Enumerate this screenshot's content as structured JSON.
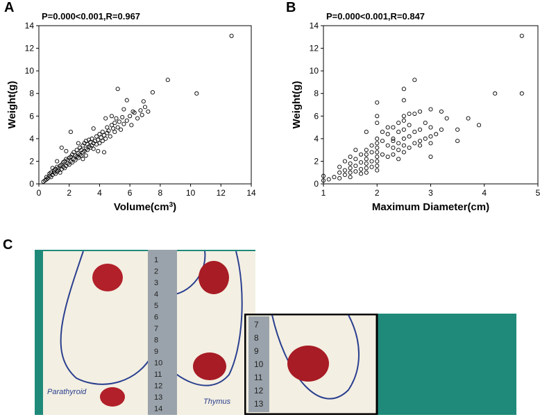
{
  "panels": {
    "a": "A",
    "b": "B",
    "c": "C"
  },
  "chart_data": [
    {
      "type": "scatter",
      "panel": "A",
      "annotation": "P=0.000<0.001,R=0.967",
      "xlabel_main": "Volume(cm",
      "xlabel_sup": "3",
      "xlabel_end": ")",
      "ylabel": "Weight(g)",
      "xlim": [
        0,
        14
      ],
      "ylim": [
        0,
        14
      ],
      "xticks": [
        0,
        2,
        4,
        6,
        8,
        10,
        12,
        14
      ],
      "yticks": [
        0,
        2,
        4,
        6,
        8,
        10,
        12,
        14
      ],
      "points": [
        [
          0.3,
          0.2
        ],
        [
          0.4,
          0.3
        ],
        [
          0.5,
          0.4
        ],
        [
          0.5,
          0.6
        ],
        [
          0.6,
          0.5
        ],
        [
          0.7,
          0.7
        ],
        [
          0.7,
          0.9
        ],
        [
          0.8,
          0.6
        ],
        [
          0.8,
          1.0
        ],
        [
          0.9,
          0.8
        ],
        [
          1.0,
          1.0
        ],
        [
          1.0,
          1.2
        ],
        [
          1.1,
          0.9
        ],
        [
          1.1,
          1.3
        ],
        [
          1.2,
          1.1
        ],
        [
          1.2,
          1.5
        ],
        [
          1.3,
          1.2
        ],
        [
          1.3,
          1.4
        ],
        [
          1.4,
          1.6
        ],
        [
          1.4,
          1.0
        ],
        [
          1.5,
          1.3
        ],
        [
          1.5,
          1.7
        ],
        [
          1.6,
          1.5
        ],
        [
          1.6,
          1.9
        ],
        [
          1.7,
          1.4
        ],
        [
          1.7,
          2.0
        ],
        [
          1.8,
          1.6
        ],
        [
          1.8,
          2.2
        ],
        [
          1.9,
          1.8
        ],
        [
          1.9,
          2.1
        ],
        [
          2.0,
          1.7
        ],
        [
          2.0,
          2.3
        ],
        [
          2.1,
          2.0
        ],
        [
          2.1,
          2.4
        ],
        [
          2.2,
          1.9
        ],
        [
          2.2,
          2.6
        ],
        [
          2.3,
          2.2
        ],
        [
          2.3,
          2.8
        ],
        [
          2.4,
          2.1
        ],
        [
          2.4,
          2.5
        ],
        [
          2.5,
          2.4
        ],
        [
          2.5,
          3.0
        ],
        [
          2.6,
          2.3
        ],
        [
          2.6,
          2.7
        ],
        [
          2.7,
          2.6
        ],
        [
          2.7,
          3.2
        ],
        [
          2.8,
          2.5
        ],
        [
          2.8,
          3.0
        ],
        [
          2.9,
          2.8
        ],
        [
          2.9,
          3.4
        ],
        [
          3.0,
          2.9
        ],
        [
          3.0,
          3.6
        ],
        [
          3.1,
          3.1
        ],
        [
          3.1,
          3.8
        ],
        [
          3.2,
          3.0
        ],
        [
          3.2,
          3.5
        ],
        [
          3.3,
          3.3
        ],
        [
          3.3,
          3.9
        ],
        [
          3.4,
          3.2
        ],
        [
          3.4,
          3.7
        ],
        [
          3.5,
          3.4
        ],
        [
          3.5,
          4.0
        ],
        [
          3.6,
          3.6
        ],
        [
          3.6,
          3.1
        ],
        [
          3.7,
          3.8
        ],
        [
          3.8,
          3.5
        ],
        [
          3.8,
          4.2
        ],
        [
          3.9,
          3.9
        ],
        [
          4.0,
          3.6
        ],
        [
          4.0,
          4.4
        ],
        [
          4.1,
          4.1
        ],
        [
          4.2,
          3.8
        ],
        [
          4.2,
          4.6
        ],
        [
          4.3,
          4.3
        ],
        [
          4.4,
          4.0
        ],
        [
          4.5,
          4.5
        ],
        [
          4.5,
          5.0
        ],
        [
          4.6,
          4.7
        ],
        [
          4.7,
          4.2
        ],
        [
          4.8,
          5.2
        ],
        [
          4.9,
          4.9
        ],
        [
          5.0,
          5.4
        ],
        [
          5.0,
          4.6
        ],
        [
          5.1,
          5.8
        ],
        [
          5.2,
          5.0
        ],
        [
          5.3,
          5.5
        ],
        [
          5.4,
          4.8
        ],
        [
          5.5,
          5.9
        ],
        [
          5.6,
          5.3
        ],
        [
          5.8,
          5.6
        ],
        [
          6.0,
          6.0
        ],
        [
          6.1,
          5.2
        ],
        [
          6.3,
          6.3
        ],
        [
          6.5,
          5.8
        ],
        [
          6.7,
          6.5
        ],
        [
          6.8,
          6.1
        ],
        [
          7.0,
          6.8
        ],
        [
          7.2,
          6.4
        ],
        [
          2.1,
          4.6
        ],
        [
          1.5,
          3.2
        ],
        [
          1.8,
          2.9
        ],
        [
          4.3,
          2.8
        ],
        [
          5.2,
          8.4
        ],
        [
          6.9,
          7.3
        ],
        [
          7.5,
          8.1
        ],
        [
          8.5,
          9.2
        ],
        [
          10.4,
          8.0
        ],
        [
          12.7,
          13.1
        ],
        [
          5.8,
          7.4
        ],
        [
          3.6,
          4.9
        ],
        [
          4.8,
          6.0
        ],
        [
          2.9,
          2.2
        ],
        [
          3.9,
          2.9
        ],
        [
          1.2,
          2.0
        ],
        [
          0.9,
          1.4
        ],
        [
          6.2,
          6.4
        ],
        [
          5.6,
          6.6
        ],
        [
          4.4,
          5.8
        ],
        [
          3.1,
          2.5
        ],
        [
          2.6,
          3.6
        ]
      ]
    },
    {
      "type": "scatter",
      "panel": "B",
      "annotation": "P=0.000<0.001,R=0.847",
      "xlabel": "Maximum Diameter(cm)",
      "ylabel": "Weight(g)",
      "xlim": [
        1,
        5
      ],
      "ylim": [
        0,
        14
      ],
      "xticks": [
        1,
        2,
        3,
        4,
        5
      ],
      "yticks": [
        0,
        2,
        4,
        6,
        8,
        10,
        12,
        14
      ],
      "points": [
        [
          1.0,
          0.3
        ],
        [
          1.0,
          0.7
        ],
        [
          1.1,
          0.4
        ],
        [
          1.2,
          0.6
        ],
        [
          1.3,
          0.5
        ],
        [
          1.3,
          1.0
        ],
        [
          1.3,
          1.5
        ],
        [
          1.4,
          0.8
        ],
        [
          1.4,
          1.2
        ],
        [
          1.4,
          2.0
        ],
        [
          1.5,
          0.6
        ],
        [
          1.5,
          1.0
        ],
        [
          1.5,
          1.4
        ],
        [
          1.5,
          1.8
        ],
        [
          1.5,
          2.4
        ],
        [
          1.6,
          1.1
        ],
        [
          1.6,
          1.6
        ],
        [
          1.6,
          2.2
        ],
        [
          1.7,
          0.9
        ],
        [
          1.7,
          1.3
        ],
        [
          1.7,
          1.9
        ],
        [
          1.7,
          2.6
        ],
        [
          1.8,
          1.0
        ],
        [
          1.8,
          1.4
        ],
        [
          1.8,
          1.8
        ],
        [
          1.8,
          2.2
        ],
        [
          1.8,
          2.6
        ],
        [
          1.8,
          3.0
        ],
        [
          1.8,
          4.6
        ],
        [
          1.9,
          1.5
        ],
        [
          1.9,
          2.0
        ],
        [
          1.9,
          2.8
        ],
        [
          1.9,
          3.4
        ],
        [
          2.0,
          1.2
        ],
        [
          2.0,
          1.6
        ],
        [
          2.0,
          2.0
        ],
        [
          2.0,
          2.4
        ],
        [
          2.0,
          2.8
        ],
        [
          2.0,
          3.2
        ],
        [
          2.0,
          3.6
        ],
        [
          2.0,
          4.0
        ],
        [
          2.0,
          5.4
        ],
        [
          2.0,
          6.0
        ],
        [
          2.0,
          7.2
        ],
        [
          2.1,
          2.6
        ],
        [
          2.1,
          3.8
        ],
        [
          2.2,
          2.4
        ],
        [
          2.2,
          3.4
        ],
        [
          2.2,
          4.4
        ],
        [
          2.3,
          2.6
        ],
        [
          2.3,
          3.2
        ],
        [
          2.3,
          4.0
        ],
        [
          2.3,
          5.0
        ],
        [
          2.4,
          2.2
        ],
        [
          2.4,
          3.0
        ],
        [
          2.4,
          3.6
        ],
        [
          2.4,
          4.6
        ],
        [
          2.5,
          2.8
        ],
        [
          2.5,
          3.4
        ],
        [
          2.5,
          4.0
        ],
        [
          2.5,
          4.8
        ],
        [
          2.5,
          5.6
        ],
        [
          2.5,
          6.0
        ],
        [
          2.5,
          8.4
        ],
        [
          2.5,
          7.4
        ],
        [
          2.6,
          3.2
        ],
        [
          2.6,
          4.2
        ],
        [
          2.6,
          5.2
        ],
        [
          2.7,
          3.6
        ],
        [
          2.7,
          4.6
        ],
        [
          2.7,
          6.2
        ],
        [
          2.7,
          9.2
        ],
        [
          2.8,
          3.4
        ],
        [
          2.8,
          4.8
        ],
        [
          2.8,
          6.4
        ],
        [
          2.9,
          4.0
        ],
        [
          2.9,
          5.4
        ],
        [
          3.0,
          3.6
        ],
        [
          3.0,
          4.2
        ],
        [
          3.0,
          5.0
        ],
        [
          3.0,
          6.6
        ],
        [
          3.0,
          2.4
        ],
        [
          3.1,
          4.4
        ],
        [
          3.2,
          4.8
        ],
        [
          3.2,
          6.4
        ],
        [
          3.3,
          5.8
        ],
        [
          3.5,
          3.8
        ],
        [
          3.5,
          4.8
        ],
        [
          3.7,
          5.8
        ],
        [
          3.9,
          5.2
        ],
        [
          4.2,
          8.0
        ],
        [
          4.7,
          8.0
        ],
        [
          4.7,
          13.1
        ],
        [
          2.4,
          5.4
        ],
        [
          2.2,
          5.0
        ],
        [
          1.6,
          3.0
        ],
        [
          2.1,
          4.6
        ],
        [
          2.6,
          6.2
        ],
        [
          2.8,
          3.8
        ],
        [
          2.3,
          3.8
        ]
      ]
    }
  ],
  "photo": {
    "paper_label_left": "Parathyroid",
    "paper_label_right": "Thymus",
    "ruler_numbers": [
      "1",
      "2",
      "3",
      "4",
      "5",
      "6",
      "7",
      "8",
      "9",
      "10",
      "11",
      "12",
      "13",
      "14"
    ],
    "inset_ruler_numbers": [
      "7",
      "8",
      "9",
      "10",
      "11",
      "12",
      "13"
    ]
  },
  "colors": {
    "marker": "#000000",
    "drape": "#1f8a7a",
    "paper": "#f3efe2",
    "tissue": "#b2202a",
    "ink": "#2a3f8f",
    "ruler": "#9aa3ab"
  }
}
